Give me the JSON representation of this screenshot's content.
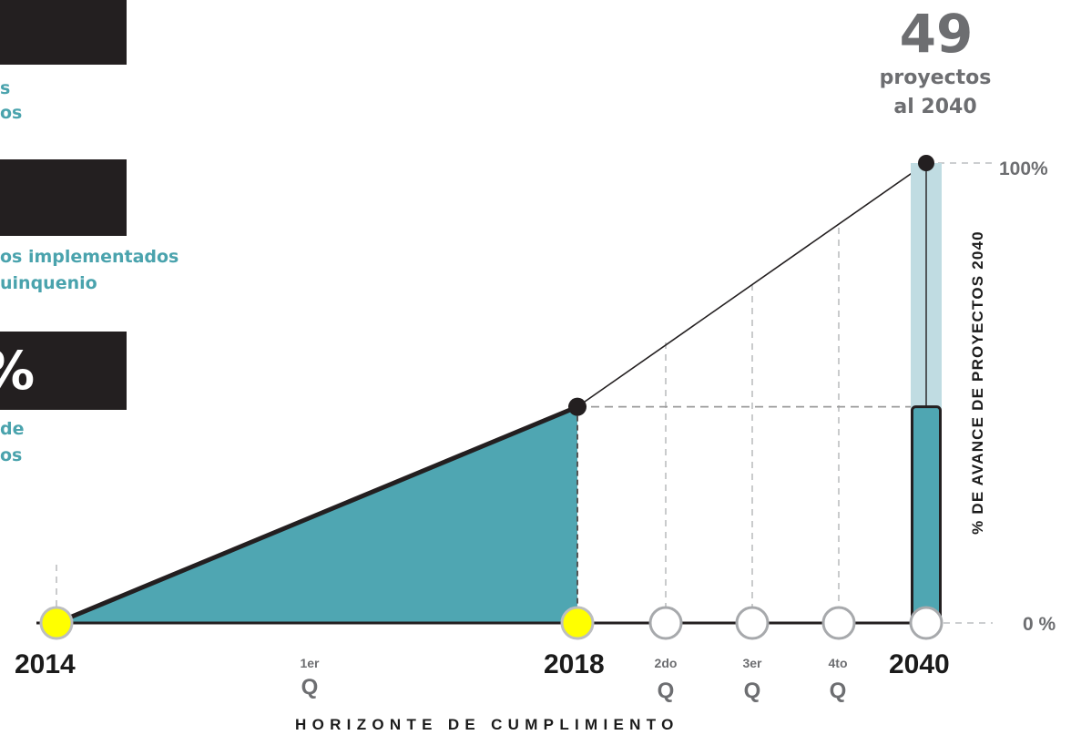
{
  "left_panel": {
    "stat1": {
      "value": "",
      "caption_lines": [
        "s",
        "os"
      ]
    },
    "stat2": {
      "value": "",
      "caption_lines": [
        "os implementados",
        "uinquenio"
      ]
    },
    "stat3": {
      "value": "%",
      "caption_lines": [
        "de",
        "os"
      ]
    }
  },
  "total": {
    "number": "49",
    "line1": "proyectos",
    "line2": "al 2040"
  },
  "colors": {
    "fill": "#4fa6b2",
    "light_bar": "#c0dce2",
    "marker_yellow": "#ffff00",
    "dark": "#231f20",
    "grey": "#6d6e71",
    "caption_teal": "#4aa3ad"
  },
  "chart_data": {
    "type": "area",
    "x_points": [
      "2014",
      "2018",
      "2040"
    ],
    "progress_percent": [
      0,
      47,
      100
    ],
    "current_percent_2018": 47,
    "quarter_markers": [
      {
        "sup": "1er",
        "q": "Q"
      },
      {
        "sup": "2do",
        "q": "Q"
      },
      {
        "sup": "3er",
        "q": "Q"
      },
      {
        "sup": "4to",
        "q": "Q"
      }
    ],
    "y_tick_labels": [
      "100%",
      "0 %"
    ],
    "ylim": [
      0,
      100
    ],
    "xlabel": "HORIZONTE DE CUMPLIMIENTO",
    "ylabel": "% DE AVANCE DE PROYECTOS 2040",
    "bar_2040": {
      "achieved_percent": 47,
      "target_percent": 100
    }
  }
}
